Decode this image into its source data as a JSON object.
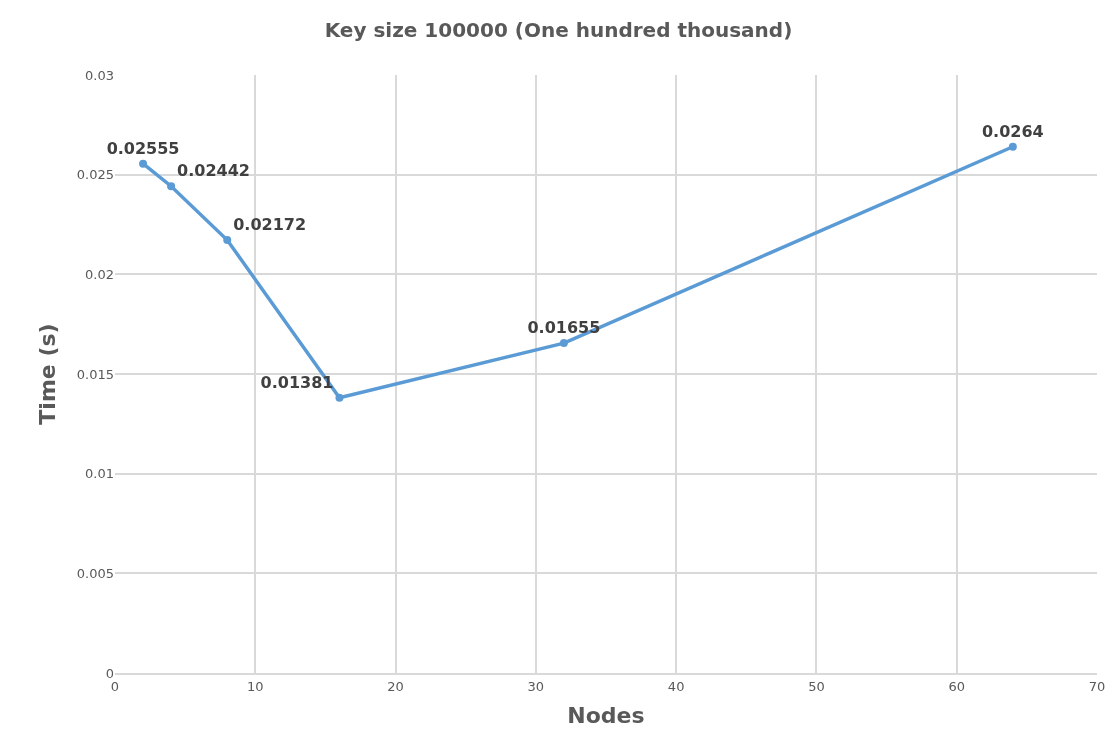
{
  "chart_data": {
    "type": "line",
    "title": "Key size 100000 (One hundred thousand)",
    "xlabel": "Nodes",
    "ylabel": "Time (s)",
    "x": [
      2,
      4,
      8,
      16,
      32,
      64
    ],
    "series": [
      {
        "color": "#5b9bd5",
        "values": [
          0.02555,
          0.02442,
          0.02172,
          0.01381,
          0.01655,
          0.0264
        ]
      }
    ],
    "xlim": [
      0,
      70
    ],
    "xticks": [
      0,
      10,
      20,
      30,
      40,
      50,
      60,
      70
    ],
    "ylim": [
      0,
      0.03
    ],
    "yticks": [
      0,
      0.005,
      0.01,
      0.015,
      0.02,
      0.025,
      0.03
    ],
    "grid": true,
    "marker": "circle",
    "line_style": "solid",
    "data_labels": true
  }
}
